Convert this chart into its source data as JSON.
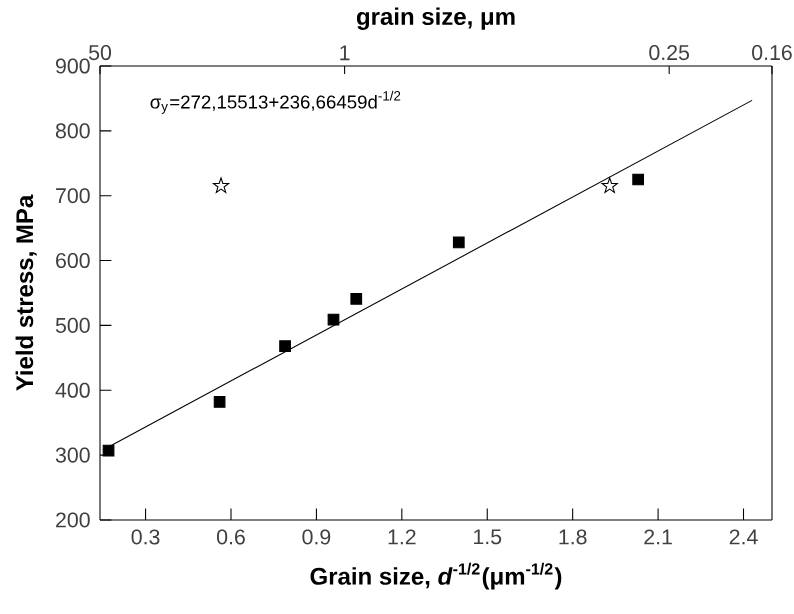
{
  "chart_data": {
    "type": "scatter",
    "x2label": "grain size, μm",
    "xlabel": "Grain size, *d*$^{-1/2}$(μm$^{-1/2}$)",
    "ylabel": "Yield stress, MPa",
    "annotations": [
      "σ$_{y}$=272,15513+236,66459d$^{-1/2}$",
      "50",
      "1",
      "0.25",
      "0.16"
    ],
    "xlim": [
      0.14,
      2.5
    ],
    "ylim": [
      200,
      900
    ],
    "xticks": [
      0.3,
      0.6,
      0.9,
      1.2,
      1.5,
      1.8,
      2.1,
      2.4
    ],
    "yticks": [
      200,
      300,
      400,
      500,
      600,
      700,
      800,
      900
    ],
    "grid": false,
    "series": [
      {
        "type": "scatter",
        "marker": "square",
        "color": "#000000",
        "x": [
          0.17,
          0.56,
          0.79,
          0.96,
          1.04,
          1.4,
          2.03
        ],
        "values": [
          307,
          382,
          468,
          509,
          541,
          628,
          725
        ]
      },
      {
        "type": "scatter",
        "marker": "star",
        "color": "#000000",
        "x": [
          0.565,
          1.93
        ],
        "values": [
          715,
          715
        ]
      },
      {
        "type": "line",
        "marker": "none",
        "color": "#000000",
        "x": [
          0.15,
          2.43
        ],
        "values": [
          308,
          847
        ]
      }
    ]
  }
}
